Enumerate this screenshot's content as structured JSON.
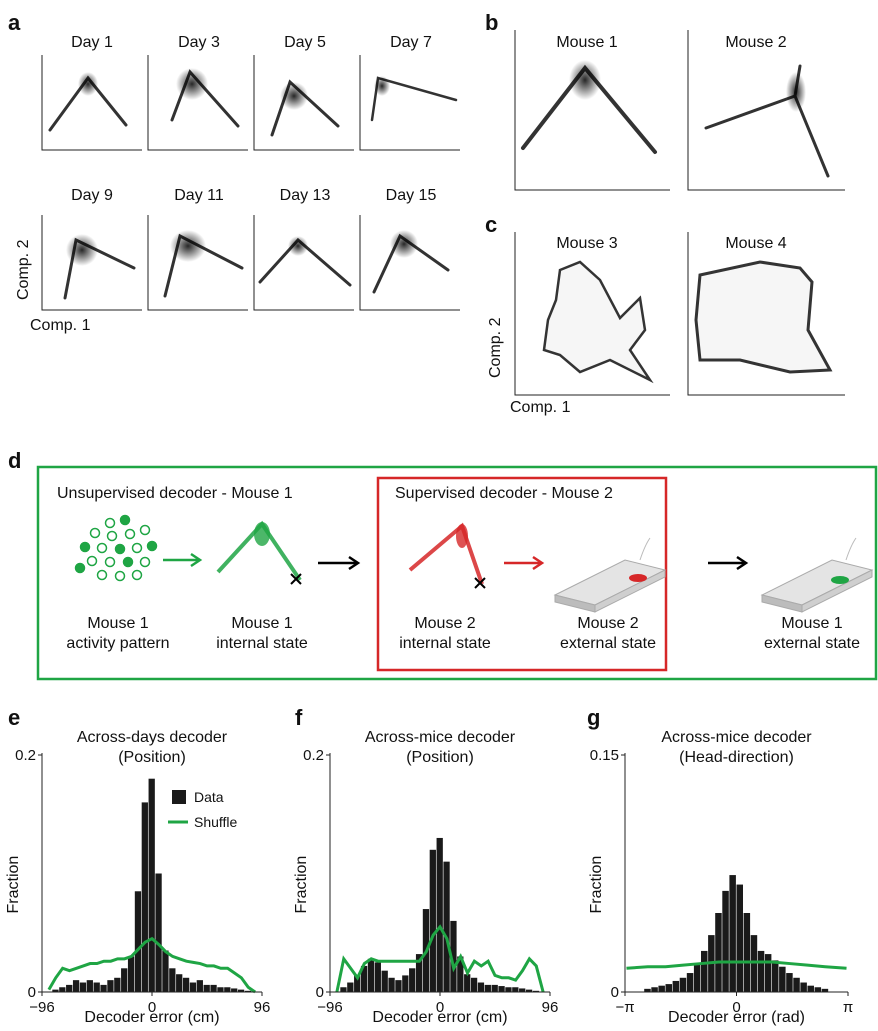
{
  "panel_letters": {
    "a": "a",
    "b": "b",
    "c": "c",
    "d": "d",
    "e": "e",
    "f": "f",
    "g": "g"
  },
  "panel_a": {
    "titles": [
      "Day 1",
      "Day 3",
      "Day 5",
      "Day 7",
      "Day 9",
      "Day 11",
      "Day 13",
      "Day 15"
    ],
    "xlabel": "Comp. 1",
    "ylabel": "Comp. 2"
  },
  "panel_b": {
    "titles": [
      "Mouse 1",
      "Mouse 2"
    ]
  },
  "panel_c": {
    "titles": [
      "Mouse 3",
      "Mouse 4"
    ],
    "xlabel": "Comp. 1",
    "ylabel": "Comp. 2"
  },
  "panel_d": {
    "unsupervised_title": "Unsupervised decoder - Mouse 1",
    "supervised_title": "Supervised decoder - Mouse 2",
    "labels": [
      [
        "Mouse 1",
        "activity pattern"
      ],
      [
        "Mouse 1",
        "internal state"
      ],
      [
        "Mouse 2",
        "internal state"
      ],
      [
        "Mouse 2",
        "external state"
      ],
      [
        "Mouse 1",
        "external state"
      ]
    ],
    "colors": {
      "green": "#1fa544",
      "red": "#d62728",
      "outer_box": "#1fa544",
      "inner_box": "#d62728"
    }
  },
  "chart_data": [
    {
      "type": "bar",
      "title": "Across-days decoder",
      "subtitle": "(Position)",
      "xlabel": "Decoder error (cm)",
      "ylabel": "Fraction",
      "xlim": [
        -96,
        96
      ],
      "ylim": [
        0,
        0.2
      ],
      "xticks": [
        "−96",
        "0",
        "96"
      ],
      "yticks": [
        "0",
        "0.2"
      ],
      "legend": {
        "data": "Data",
        "shuffle": "Shuffle",
        "placement": "top-right"
      },
      "bin_centers": [
        -90,
        -84,
        -78,
        -72,
        -66,
        -60,
        -54,
        -48,
        -42,
        -36,
        -30,
        -24,
        -18,
        -12,
        -6,
        0,
        6,
        12,
        18,
        24,
        30,
        36,
        42,
        48,
        54,
        60,
        66,
        72,
        78,
        84,
        90
      ],
      "bar_values": [
        0.0,
        0.002,
        0.004,
        0.006,
        0.01,
        0.008,
        0.01,
        0.008,
        0.006,
        0.01,
        0.012,
        0.02,
        0.03,
        0.085,
        0.16,
        0.18,
        0.1,
        0.035,
        0.02,
        0.015,
        0.012,
        0.008,
        0.01,
        0.006,
        0.006,
        0.004,
        0.004,
        0.003,
        0.002,
        0.001,
        0.0
      ],
      "series": [
        {
          "name": "Shuffle",
          "color": "#1fa544",
          "x": [
            -90,
            -84,
            -78,
            -72,
            -66,
            -60,
            -54,
            -48,
            -42,
            -36,
            -30,
            -24,
            -18,
            -12,
            -6,
            0,
            6,
            12,
            18,
            24,
            30,
            36,
            42,
            48,
            54,
            60,
            66,
            72,
            78,
            84,
            90
          ],
          "values": [
            0.002,
            0.012,
            0.02,
            0.018,
            0.02,
            0.022,
            0.024,
            0.024,
            0.026,
            0.026,
            0.028,
            0.028,
            0.03,
            0.036,
            0.042,
            0.045,
            0.04,
            0.034,
            0.03,
            0.028,
            0.026,
            0.025,
            0.024,
            0.022,
            0.022,
            0.02,
            0.02,
            0.016,
            0.012,
            0.004,
            0.0
          ]
        }
      ],
      "bar_color": "#1a1a1a"
    },
    {
      "type": "bar",
      "title": "Across-mice decoder",
      "subtitle": "(Position)",
      "xlabel": "Decoder error (cm)",
      "ylabel": "Fraction",
      "xlim": [
        -96,
        96
      ],
      "ylim": [
        0,
        0.2
      ],
      "xticks": [
        "−96",
        "0",
        "96"
      ],
      "yticks": [
        "0",
        "0.2"
      ],
      "bin_centers": [
        -90,
        -84,
        -78,
        -72,
        -66,
        -60,
        -54,
        -48,
        -42,
        -36,
        -30,
        -24,
        -18,
        -12,
        -6,
        0,
        6,
        12,
        18,
        24,
        30,
        36,
        42,
        48,
        54,
        60,
        66,
        72,
        78,
        84,
        90
      ],
      "bar_values": [
        0.0,
        0.004,
        0.008,
        0.014,
        0.022,
        0.028,
        0.025,
        0.018,
        0.012,
        0.01,
        0.014,
        0.02,
        0.032,
        0.07,
        0.12,
        0.13,
        0.11,
        0.06,
        0.03,
        0.015,
        0.012,
        0.008,
        0.006,
        0.006,
        0.005,
        0.004,
        0.004,
        0.003,
        0.002,
        0.001,
        0.0
      ],
      "series": [
        {
          "name": "Shuffle",
          "color": "#1fa544",
          "x": [
            -90,
            -84,
            -78,
            -72,
            -66,
            -60,
            -54,
            -48,
            -42,
            -36,
            -30,
            -24,
            -18,
            -12,
            -6,
            0,
            6,
            12,
            18,
            24,
            30,
            36,
            42,
            48,
            54,
            60,
            66,
            72,
            78,
            84,
            90
          ],
          "values": [
            0.0,
            0.028,
            0.02,
            0.012,
            0.024,
            0.028,
            0.026,
            0.026,
            0.026,
            0.026,
            0.026,
            0.026,
            0.026,
            0.034,
            0.048,
            0.055,
            0.045,
            0.02,
            0.03,
            0.016,
            0.026,
            0.022,
            0.026,
            0.014,
            0.012,
            0.012,
            0.01,
            0.018,
            0.028,
            0.022,
            0.0
          ]
        }
      ],
      "bar_color": "#1a1a1a"
    },
    {
      "type": "bar",
      "title": "Across-mice decoder",
      "subtitle": "(Head-direction)",
      "xlabel": "Decoder error (rad)",
      "ylabel": "Fraction",
      "xlim": [
        -3.1416,
        3.1416
      ],
      "ylim": [
        0,
        0.15
      ],
      "xticks": [
        "−π",
        "0",
        "π"
      ],
      "yticks": [
        "0",
        "0.15"
      ],
      "bin_centers": [
        -2.5,
        -2.3,
        -2.1,
        -1.9,
        -1.7,
        -1.5,
        -1.3,
        -1.1,
        -0.9,
        -0.7,
        -0.5,
        -0.3,
        -0.1,
        0.1,
        0.3,
        0.5,
        0.7,
        0.9,
        1.1,
        1.3,
        1.5,
        1.7,
        1.9,
        2.1,
        2.3,
        2.5
      ],
      "bar_values": [
        0.002,
        0.003,
        0.004,
        0.005,
        0.007,
        0.009,
        0.012,
        0.018,
        0.026,
        0.036,
        0.05,
        0.064,
        0.074,
        0.068,
        0.05,
        0.036,
        0.026,
        0.024,
        0.02,
        0.016,
        0.012,
        0.009,
        0.006,
        0.004,
        0.003,
        0.002
      ],
      "series": [
        {
          "name": "Shuffle",
          "color": "#1fa544",
          "x": [
            -3.1,
            -2.5,
            -2.0,
            -1.5,
            -1.0,
            -0.5,
            0.0,
            0.5,
            1.0,
            1.5,
            2.0,
            2.5,
            3.1
          ],
          "values": [
            0.015,
            0.016,
            0.016,
            0.017,
            0.018,
            0.019,
            0.019,
            0.019,
            0.019,
            0.018,
            0.017,
            0.016,
            0.015
          ]
        }
      ],
      "bar_color": "#1a1a1a"
    }
  ]
}
